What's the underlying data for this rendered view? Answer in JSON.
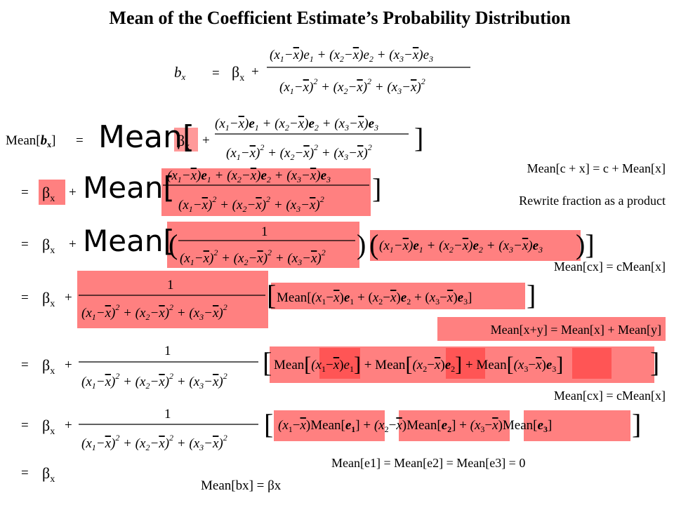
{
  "title": "Mean of the Coefficient Estimate’s Probability Distribution",
  "notes": {
    "mean_c_plus_x": "Mean[c + x] = c + Mean[x]",
    "rewrite_fraction": "Rewrite fraction as a product",
    "mean_cx_1": "Mean[cx] = cMean[x]",
    "mean_x_plus_y": "Mean[x+y] = Mean[x] + Mean[y]",
    "mean_cx_2": "Mean[cx] = cMean[x]",
    "mean_e_zero": "Mean[e1] = Mean[e2] = Mean[e3] = 0",
    "conclusion": "Mean[bx] = βx"
  },
  "highlight_color": "#ff8080",
  "highlight_soft_color": "#ff9999"
}
